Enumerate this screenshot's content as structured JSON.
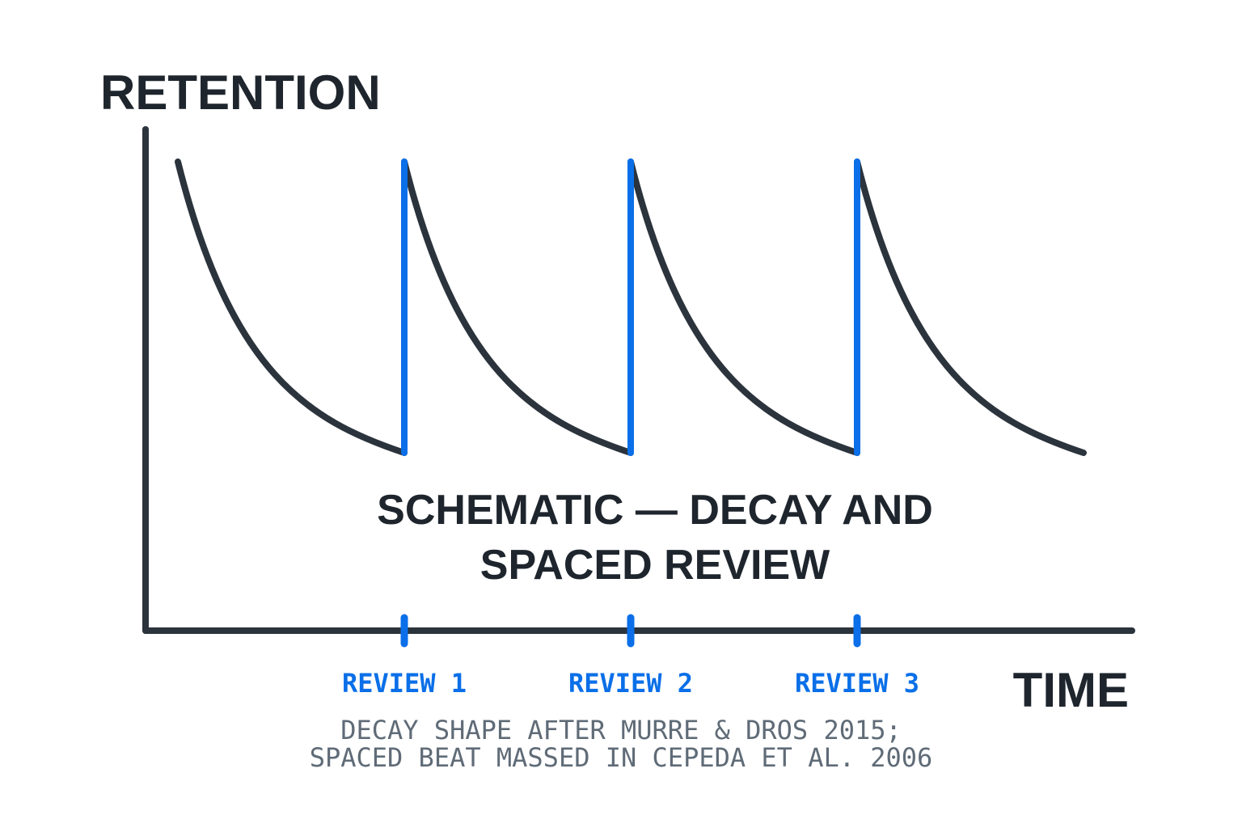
{
  "diagram": {
    "y_axis_label": "RETENTION",
    "x_axis_label": "TIME",
    "title_lines": [
      "SCHEMATIC — DECAY AND",
      "SPACED REVIEW"
    ],
    "reviews": [
      {
        "label": "REVIEW 1"
      },
      {
        "label": "REVIEW 2"
      },
      {
        "label": "REVIEW 3"
      }
    ],
    "caption_lines": [
      "DECAY SHAPE AFTER MURRE & DROS 2015;",
      "SPACED BEAT MASSED IN CEPEDA ET AL. 2006"
    ],
    "colors": {
      "curve": "#2b333c",
      "axis": "#2b333c",
      "review": "#0a6fe8",
      "text": "#1e252d",
      "caption": "#5f6b77"
    }
  }
}
